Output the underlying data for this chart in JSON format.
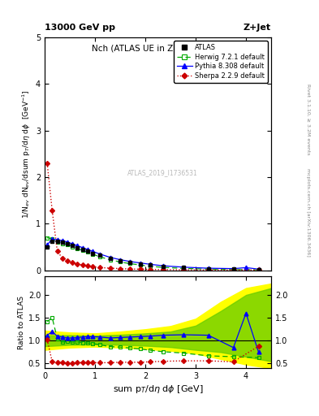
{
  "title_top": "13000 GeV pp",
  "title_right": "Z+Jet",
  "plot_title": "Nch (ATLAS UE in Z production)",
  "ylabel_main": "1/N$_{ev}$ dN$_{ev}$/dsum p$_T$/d$\\eta$ d$\\phi$  [GeV]$^{-1}$",
  "ylabel_ratio": "Ratio to ATLAS",
  "xlabel": "sum p$_T$/d$\\eta$ d$\\phi$ [GeV]",
  "right_label": "Rivet 3.1.10, ≥ 3.2M events",
  "right_label2": "mcplots.cern.ch [arXiv:1306.3436]",
  "watermark": "ATLAS_2019_I1736531",
  "atlas_x": [
    0.05,
    0.15,
    0.25,
    0.35,
    0.45,
    0.55,
    0.65,
    0.75,
    0.85,
    0.95,
    1.1,
    1.3,
    1.5,
    1.7,
    1.9,
    2.1,
    2.35,
    2.75,
    3.25,
    3.75,
    4.25
  ],
  "atlas_y": [
    0.5,
    0.62,
    0.62,
    0.6,
    0.57,
    0.53,
    0.49,
    0.45,
    0.41,
    0.37,
    0.32,
    0.26,
    0.21,
    0.17,
    0.14,
    0.11,
    0.085,
    0.058,
    0.038,
    0.027,
    0.02
  ],
  "atlas_yerr": [
    0.02,
    0.02,
    0.02,
    0.02,
    0.02,
    0.015,
    0.015,
    0.015,
    0.012,
    0.012,
    0.01,
    0.008,
    0.007,
    0.006,
    0.005,
    0.004,
    0.003,
    0.003,
    0.002,
    0.002,
    0.002
  ],
  "herwig_x": [
    0.05,
    0.15,
    0.25,
    0.35,
    0.45,
    0.55,
    0.65,
    0.75,
    0.85,
    0.95,
    1.1,
    1.3,
    1.5,
    1.7,
    1.9,
    2.1,
    2.35,
    2.75,
    3.25,
    3.75,
    4.25
  ],
  "herwig_y": [
    0.7,
    0.68,
    0.6,
    0.57,
    0.56,
    0.51,
    0.47,
    0.43,
    0.39,
    0.35,
    0.29,
    0.23,
    0.18,
    0.145,
    0.115,
    0.088,
    0.065,
    0.043,
    0.026,
    0.018,
    0.013
  ],
  "pythia_x": [
    0.05,
    0.15,
    0.25,
    0.35,
    0.45,
    0.55,
    0.65,
    0.75,
    0.85,
    0.95,
    1.1,
    1.3,
    1.5,
    1.7,
    1.9,
    2.1,
    2.35,
    2.75,
    3.25,
    3.75,
    4.0,
    4.25
  ],
  "pythia_y": [
    0.55,
    0.67,
    0.66,
    0.64,
    0.61,
    0.57,
    0.53,
    0.49,
    0.45,
    0.41,
    0.35,
    0.28,
    0.23,
    0.19,
    0.16,
    0.13,
    0.1,
    0.07,
    0.047,
    0.038,
    0.06,
    0.027
  ],
  "sherpa_x": [
    0.05,
    0.15,
    0.25,
    0.35,
    0.45,
    0.55,
    0.65,
    0.75,
    0.85,
    0.95,
    1.1,
    1.3,
    1.5,
    1.7,
    1.9,
    2.1,
    2.35,
    2.75,
    3.25,
    3.75,
    4.25
  ],
  "sherpa_y": [
    2.3,
    1.28,
    0.42,
    0.26,
    0.2,
    0.165,
    0.138,
    0.115,
    0.095,
    0.08,
    0.062,
    0.048,
    0.038,
    0.03,
    0.025,
    0.021,
    0.017,
    0.013,
    0.01,
    0.009,
    0.008
  ],
  "ratio_herwig_x": [
    0.05,
    0.15,
    0.25,
    0.35,
    0.45,
    0.55,
    0.65,
    0.75,
    0.85,
    0.95,
    1.1,
    1.3,
    1.5,
    1.7,
    1.9,
    2.1,
    2.35,
    2.75,
    3.25,
    3.75,
    4.25
  ],
  "ratio_herwig_y": [
    1.42,
    1.5,
    1.05,
    0.97,
    0.98,
    0.97,
    0.97,
    0.96,
    0.95,
    0.94,
    0.91,
    0.87,
    0.86,
    0.84,
    0.82,
    0.79,
    0.76,
    0.73,
    0.67,
    0.65,
    0.63
  ],
  "ratio_pythia_x": [
    0.05,
    0.15,
    0.25,
    0.35,
    0.45,
    0.55,
    0.65,
    0.75,
    0.85,
    0.95,
    1.1,
    1.3,
    1.5,
    1.7,
    1.9,
    2.1,
    2.35,
    2.75,
    3.25,
    3.75,
    4.0,
    4.25
  ],
  "ratio_pythia_y": [
    1.12,
    1.2,
    1.1,
    1.08,
    1.06,
    1.06,
    1.07,
    1.08,
    1.09,
    1.09,
    1.08,
    1.06,
    1.07,
    1.08,
    1.09,
    1.1,
    1.12,
    1.13,
    1.12,
    0.85,
    1.6,
    0.75
  ],
  "ratio_sherpa_x": [
    0.05,
    0.15,
    0.25,
    0.35,
    0.45,
    0.55,
    0.65,
    0.75,
    0.85,
    0.95,
    1.1,
    1.3,
    1.5,
    1.7,
    1.9,
    2.1,
    2.35,
    2.75,
    3.25,
    3.75,
    4.25
  ],
  "ratio_sherpa_y": [
    1.02,
    0.54,
    0.52,
    0.52,
    0.51,
    0.51,
    0.52,
    0.52,
    0.52,
    0.52,
    0.52,
    0.52,
    0.53,
    0.53,
    0.53,
    0.54,
    0.55,
    0.56,
    0.56,
    0.54,
    0.88
  ],
  "band_yellow_x": [
    0.0,
    0.5,
    1.0,
    1.5,
    2.0,
    2.5,
    3.0,
    3.5,
    4.0,
    4.5
  ],
  "band_yellow_lo": [
    0.8,
    0.85,
    0.87,
    0.85,
    0.82,
    0.78,
    0.72,
    0.6,
    0.48,
    0.4
  ],
  "band_yellow_hi": [
    1.22,
    1.18,
    1.16,
    1.2,
    1.25,
    1.32,
    1.48,
    1.85,
    2.15,
    2.25
  ],
  "band_green_x": [
    0.0,
    0.5,
    1.0,
    1.5,
    2.0,
    2.5,
    3.0,
    3.5,
    4.0,
    4.5
  ],
  "band_green_lo": [
    0.88,
    0.91,
    0.92,
    0.91,
    0.89,
    0.86,
    0.8,
    0.75,
    0.65,
    0.55
  ],
  "band_green_hi": [
    1.12,
    1.12,
    1.11,
    1.13,
    1.16,
    1.2,
    1.33,
    1.65,
    2.0,
    2.15
  ],
  "xlim": [
    0,
    4.5
  ],
  "ylim_main": [
    0,
    5
  ],
  "ylim_ratio": [
    0.4,
    2.4
  ],
  "yticks_ratio": [
    0.5,
    1.0,
    1.5,
    2.0
  ],
  "color_atlas": "#000000",
  "color_herwig": "#00aa00",
  "color_pythia": "#0000ff",
  "color_sherpa": "#cc0000",
  "color_band_yellow": "#ffff00",
  "color_band_green": "#66cc00"
}
